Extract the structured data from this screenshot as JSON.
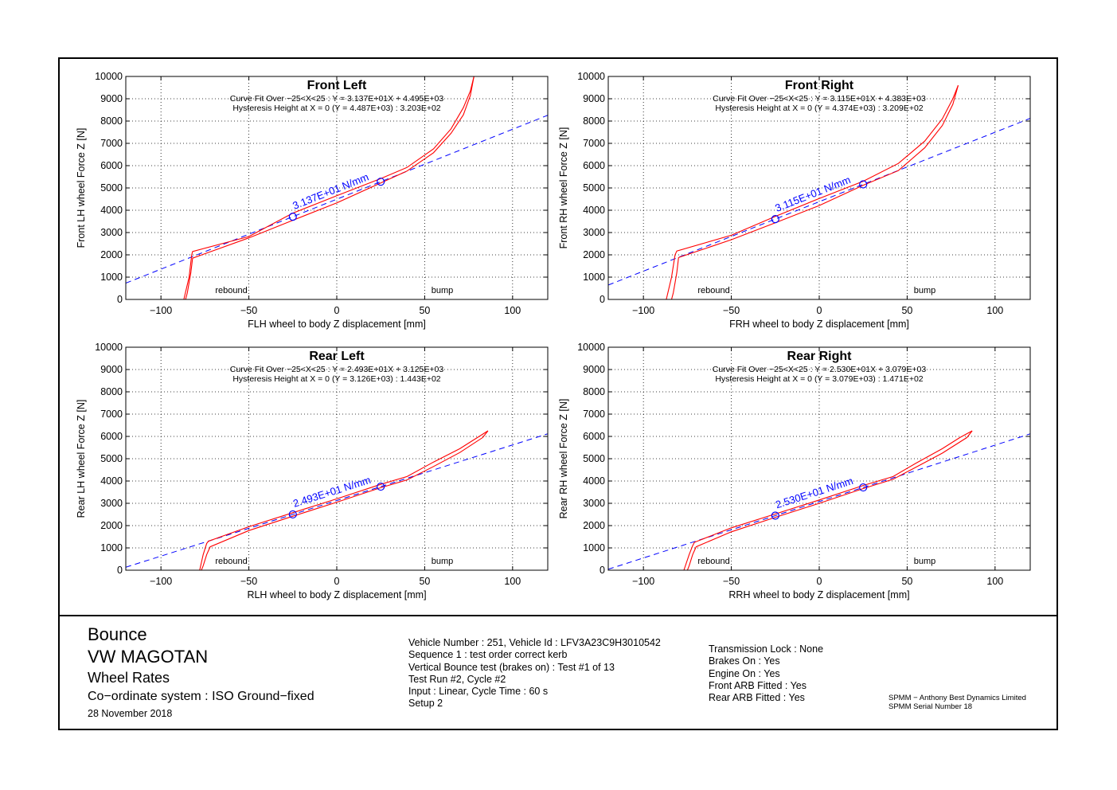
{
  "chart_data": [
    {
      "type": "line",
      "title": "Front Left",
      "subtitle_lines": [
        "Curve Fit Over −25<X<25 : Y = 3.137E+01X + 4.495E+03",
        "Hysteresis Height at X = 0 (Y = 4.487E+03) : 3.203E+02"
      ],
      "xlabel": "FLH wheel to body Z displacement [mm]",
      "ylabel": "Front LH wheel Force Z [N]",
      "xlim": [
        -120,
        120
      ],
      "ylim": [
        0,
        10000
      ],
      "xticks": [
        -100,
        -50,
        0,
        50,
        100
      ],
      "xtick_labels": [
        "−100",
        "−50",
        "0",
        "50",
        "100"
      ],
      "yticks": [
        0,
        1000,
        2000,
        3000,
        4000,
        5000,
        6000,
        7000,
        8000,
        9000,
        10000
      ],
      "grid": true,
      "annotations": {
        "rebound": "rebound",
        "bump": "bump",
        "rate": "3.137E+01 N/mm"
      },
      "fit": {
        "slope": 31.37,
        "intercept": 4495
      },
      "markers": [
        {
          "x": -25,
          "y": 3711
        },
        {
          "x": 25,
          "y": 5279
        }
      ],
      "hysteresis_loop": {
        "upper": [
          [
            -87,
            0
          ],
          [
            -84,
            1000
          ],
          [
            -82.5,
            2000
          ],
          [
            -82,
            2150
          ],
          [
            -50,
            2820
          ],
          [
            -25,
            3870
          ],
          [
            0,
            4650
          ],
          [
            25,
            5420
          ],
          [
            40,
            5920
          ],
          [
            55,
            6750
          ],
          [
            65,
            7650
          ],
          [
            72,
            8600
          ],
          [
            76,
            9350
          ],
          [
            78,
            10000
          ]
        ],
        "lower": [
          [
            78,
            10000
          ],
          [
            76,
            9150
          ],
          [
            72,
            8280
          ],
          [
            65,
            7450
          ],
          [
            55,
            6580
          ],
          [
            40,
            5760
          ],
          [
            25,
            5220
          ],
          [
            0,
            4330
          ],
          [
            -25,
            3550
          ],
          [
            -50,
            2760
          ],
          [
            -82,
            1850
          ],
          [
            -83,
            1200
          ],
          [
            -85,
            300
          ],
          [
            -86,
            0
          ]
        ]
      }
    },
    {
      "type": "line",
      "title": "Front Right",
      "subtitle_lines": [
        "Curve Fit Over −25<X<25 : Y = 3.115E+01X + 4.383E+03",
        "Hysteresis Height at X = 0 (Y = 4.374E+03) : 3.209E+02"
      ],
      "xlabel": "FRH wheel to body Z displacement [mm]",
      "ylabel": "Front RH wheel Force Z [N]",
      "xlim": [
        -120,
        120
      ],
      "ylim": [
        0,
        10000
      ],
      "xticks": [
        -100,
        -50,
        0,
        50,
        100
      ],
      "xtick_labels": [
        "−100",
        "−50",
        "0",
        "50",
        "100"
      ],
      "yticks": [
        0,
        1000,
        2000,
        3000,
        4000,
        5000,
        6000,
        7000,
        8000,
        9000,
        10000
      ],
      "grid": true,
      "annotations": {
        "rebound": "rebound",
        "bump": "bump",
        "rate": "3.115E+01 N/mm"
      },
      "fit": {
        "slope": 31.15,
        "intercept": 4383
      },
      "markers": [
        {
          "x": -25,
          "y": 3604
        },
        {
          "x": 25,
          "y": 5162
        }
      ],
      "hysteresis_loop": {
        "upper": [
          [
            -87,
            0
          ],
          [
            -84,
            1000
          ],
          [
            -82,
            2000
          ],
          [
            -81,
            2170
          ],
          [
            -50,
            2880
          ],
          [
            -25,
            3720
          ],
          [
            0,
            4530
          ],
          [
            25,
            5300
          ],
          [
            45,
            6100
          ],
          [
            60,
            7100
          ],
          [
            70,
            8100
          ],
          [
            76,
            9000
          ],
          [
            79,
            9600
          ]
        ],
        "lower": [
          [
            79,
            9600
          ],
          [
            76,
            8750
          ],
          [
            70,
            7800
          ],
          [
            60,
            6800
          ],
          [
            45,
            5780
          ],
          [
            25,
            5120
          ],
          [
            0,
            4210
          ],
          [
            -25,
            3440
          ],
          [
            -50,
            2680
          ],
          [
            -80,
            1880
          ],
          [
            -81,
            1200
          ],
          [
            -83,
            300
          ],
          [
            -84,
            0
          ]
        ]
      }
    },
    {
      "type": "line",
      "title": "Rear Left",
      "subtitle_lines": [
        "Curve Fit Over −25<X<25 : Y = 2.493E+01X + 3.125E+03",
        "Hysteresis Height at X = 0 (Y = 3.126E+03) : 1.443E+02"
      ],
      "xlabel": "RLH wheel to body Z displacement [mm]",
      "ylabel": "Rear LH wheel Force Z [N]",
      "xlim": [
        -120,
        120
      ],
      "ylim": [
        0,
        10000
      ],
      "xticks": [
        -100,
        -50,
        0,
        50,
        100
      ],
      "xtick_labels": [
        "−100",
        "−50",
        "0",
        "50",
        "100"
      ],
      "yticks": [
        0,
        1000,
        2000,
        3000,
        4000,
        5000,
        6000,
        7000,
        8000,
        9000,
        10000
      ],
      "grid": true,
      "annotations": {
        "rebound": "rebound",
        "bump": "bump",
        "rate": "2.493E+01 N/mm"
      },
      "fit": {
        "slope": 24.93,
        "intercept": 3125
      },
      "markers": [
        {
          "x": -25,
          "y": 2502
        },
        {
          "x": 25,
          "y": 3748
        }
      ],
      "hysteresis_loop": {
        "upper": [
          [
            -78,
            0
          ],
          [
            -76,
            700
          ],
          [
            -74,
            1200
          ],
          [
            -73,
            1300
          ],
          [
            -50,
            1950
          ],
          [
            -25,
            2580
          ],
          [
            0,
            3200
          ],
          [
            25,
            3850
          ],
          [
            40,
            4200
          ],
          [
            55,
            4850
          ],
          [
            70,
            5450
          ],
          [
            80,
            5950
          ],
          [
            86,
            6250
          ]
        ],
        "lower": [
          [
            86,
            6250
          ],
          [
            83,
            5950
          ],
          [
            70,
            5280
          ],
          [
            55,
            4650
          ],
          [
            40,
            4050
          ],
          [
            25,
            3700
          ],
          [
            0,
            3050
          ],
          [
            -25,
            2420
          ],
          [
            -50,
            1780
          ],
          [
            -72,
            1050
          ],
          [
            -74,
            700
          ],
          [
            -76,
            200
          ],
          [
            -77,
            0
          ]
        ]
      }
    },
    {
      "type": "line",
      "title": "Rear Right",
      "subtitle_lines": [
        "Curve Fit Over −25<X<25 : Y = 2.530E+01X + 3.079E+03",
        "Hysteresis Height at X = 0 (Y = 3.079E+03) : 1.471E+02"
      ],
      "xlabel": "RRH wheel to body Z displacement [mm]",
      "ylabel": "Rear RH wheel Force Z [N]",
      "xlim": [
        -120,
        120
      ],
      "ylim": [
        0,
        10000
      ],
      "xticks": [
        -100,
        -50,
        0,
        50,
        100
      ],
      "xtick_labels": [
        "−100",
        "−50",
        "0",
        "50",
        "100"
      ],
      "yticks": [
        0,
        1000,
        2000,
        3000,
        4000,
        5000,
        6000,
        7000,
        8000,
        9000,
        10000
      ],
      "grid": true,
      "annotations": {
        "rebound": "rebound",
        "bump": "bump",
        "rate": "2.530E+01 N/mm"
      },
      "fit": {
        "slope": 25.3,
        "intercept": 3079
      },
      "markers": [
        {
          "x": -25,
          "y": 2447
        },
        {
          "x": 25,
          "y": 3712
        }
      ],
      "hysteresis_loop": {
        "upper": [
          [
            -77,
            0
          ],
          [
            -74,
            700
          ],
          [
            -72,
            1100
          ],
          [
            -71,
            1250
          ],
          [
            -50,
            1900
          ],
          [
            -25,
            2520
          ],
          [
            0,
            3150
          ],
          [
            25,
            3800
          ],
          [
            42,
            4200
          ],
          [
            55,
            4800
          ],
          [
            70,
            5450
          ],
          [
            80,
            5950
          ],
          [
            87,
            6250
          ]
        ],
        "lower": [
          [
            87,
            6250
          ],
          [
            84,
            5950
          ],
          [
            70,
            5250
          ],
          [
            55,
            4620
          ],
          [
            42,
            4080
          ],
          [
            25,
            3660
          ],
          [
            0,
            3000
          ],
          [
            -25,
            2370
          ],
          [
            -50,
            1720
          ],
          [
            -70,
            1050
          ],
          [
            -72,
            700
          ],
          [
            -74,
            200
          ],
          [
            -75,
            0
          ]
        ]
      }
    }
  ],
  "footer": {
    "title_block": {
      "line1": "Bounce",
      "line2": "VW MAGOTAN",
      "line3": "Wheel Rates",
      "line4": "Co−ordinate system : ISO Ground−fixed",
      "line5": "28 November 2018"
    },
    "test_info": [
      "Vehicle Number : 251, Vehicle Id : LFV3A23C9H3010542",
      "Sequence 1 : test order correct kerb",
      "Vertical Bounce test (brakes on) : Test #1 of 13",
      "Test Run #2, Cycle #2",
      "Input : Linear, Cycle Time : 60 s",
      "Setup 2"
    ],
    "vehicle_state": [
      "Transmission Lock : None",
      "Brakes On : Yes",
      "Engine On : Yes",
      "Front ARB Fitted : Yes",
      "Rear ARB Fitted : Yes"
    ],
    "vendor": [
      "SPMM − Anthony Best Dynamics Limited",
      "SPMM Serial Number 18"
    ]
  },
  "colors": {
    "loop": "#ff0000",
    "fit": "#0000ff",
    "marker": "#0000ff",
    "grid": "#000000"
  }
}
